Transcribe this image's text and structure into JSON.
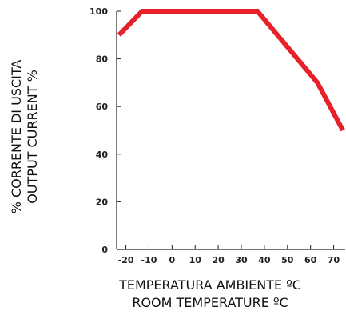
{
  "chart_data": {
    "type": "line",
    "x_ticks": [
      -20,
      -10,
      0,
      10,
      20,
      30,
      40,
      50,
      60,
      70
    ],
    "y_ticks": [
      0,
      20,
      40,
      60,
      80,
      100
    ],
    "xlim": [
      -24,
      75
    ],
    "ylim": [
      0,
      100
    ],
    "series": [
      {
        "points": [
          {
            "x": -23,
            "y": 90
          },
          {
            "x": -13,
            "y": 100
          },
          {
            "x": 37,
            "y": 100
          },
          {
            "x": 63,
            "y": 70
          },
          {
            "x": 74,
            "y": 50
          }
        ],
        "color": "#e8202a"
      }
    ],
    "xlabel_lines": [
      "TEMPERATURA AMBIENTE ºC",
      "ROOM TEMPERATURE ºC"
    ],
    "ylabel_lines": [
      "% CORRENTE DI USCITA",
      "OUTPUT CURRENT %"
    ],
    "grid": false
  }
}
